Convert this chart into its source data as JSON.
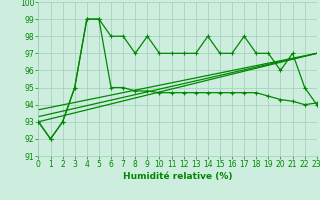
{
  "x": [
    0,
    1,
    2,
    3,
    4,
    5,
    6,
    7,
    8,
    9,
    10,
    11,
    12,
    13,
    14,
    15,
    16,
    17,
    18,
    19,
    20,
    21,
    22,
    23
  ],
  "line1": [
    93,
    92,
    93,
    95,
    99,
    99,
    98,
    98,
    97,
    98,
    97,
    97,
    97,
    97,
    98,
    97,
    97,
    98,
    97,
    97,
    96,
    97,
    95,
    94
  ],
  "line2": [
    93,
    92,
    93,
    95,
    99,
    99,
    95,
    95,
    94.8,
    94.8,
    94.7,
    94.7,
    94.7,
    94.7,
    94.7,
    94.7,
    94.7,
    94.7,
    94.7,
    94.5,
    94.3,
    94.2,
    94.0,
    94.1
  ],
  "line3": [
    [
      0,
      93.0
    ],
    [
      23,
      97.0
    ]
  ],
  "line4": [
    [
      0,
      93.3
    ],
    [
      23,
      97.0
    ]
  ],
  "line5": [
    [
      0,
      93.7
    ],
    [
      23,
      97.0
    ]
  ],
  "ylim": [
    91,
    100
  ],
  "xlim": [
    0,
    23
  ],
  "bg_color": "#cdeede",
  "grid_color": "#a0ccb8",
  "line_color": "#008800",
  "tick_color": "#008800",
  "xlabel": "Humidité relative (%)",
  "xlabel_fontsize": 6.5,
  "tick_fontsize": 5.5,
  "figsize": [
    3.2,
    2.0
  ],
  "dpi": 100
}
